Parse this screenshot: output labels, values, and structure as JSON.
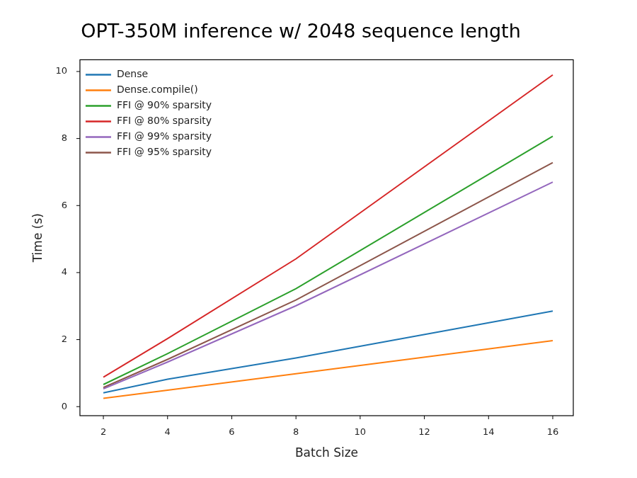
{
  "chart_data": {
    "type": "line",
    "title": "OPT-350M inference w/ 2048 sequence length",
    "x_label": "Batch Size",
    "y_label": "Time (s)",
    "x": [
      2,
      4,
      8,
      16
    ],
    "series": [
      {
        "name": "Dense",
        "color": "#1f77b4",
        "values": [
          0.41,
          0.82,
          1.45,
          2.85
        ]
      },
      {
        "name": "Dense.compile()",
        "color": "#ff7f0e",
        "values": [
          0.25,
          0.49,
          0.98,
          1.97
        ]
      },
      {
        "name": "FFI @ 90% sparsity",
        "color": "#2ca02c",
        "values": [
          0.66,
          1.58,
          3.52,
          8.07
        ]
      },
      {
        "name": "FFI @ 80% sparsity",
        "color": "#d62728",
        "values": [
          0.88,
          2.03,
          4.41,
          9.9
        ]
      },
      {
        "name": "FFI @ 99% sparsity",
        "color": "#9467bd",
        "values": [
          0.53,
          1.33,
          3.01,
          6.7
        ]
      },
      {
        "name": "FFI @ 95% sparsity",
        "color": "#8c564b",
        "values": [
          0.57,
          1.41,
          3.18,
          7.28
        ]
      }
    ],
    "xlim": [
      1.27,
      16.64
    ],
    "xticks": [
      2,
      4,
      6,
      8,
      10,
      12,
      14,
      16
    ],
    "ylim": [
      -0.27,
      10.35
    ],
    "yticks": [
      0,
      2,
      4,
      6,
      8,
      10
    ],
    "grid": false,
    "legend": "upper left"
  }
}
